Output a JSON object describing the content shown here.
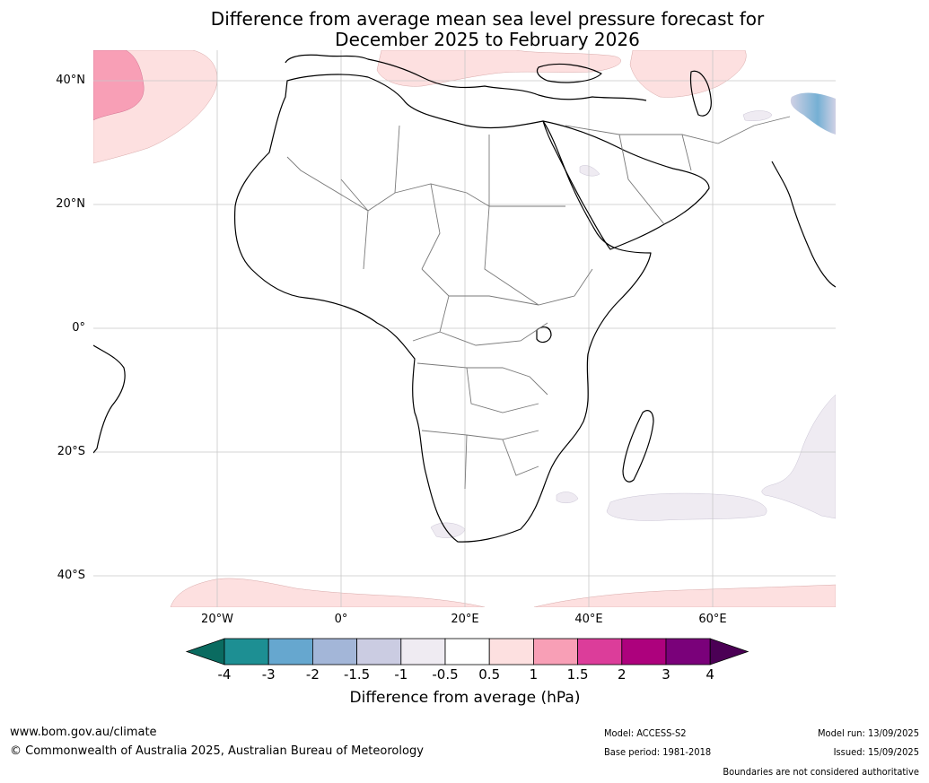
{
  "title": {
    "line1": "Difference from average mean sea level pressure forecast for",
    "line2": "December 2025 to February 2026"
  },
  "map": {
    "lat_ticks": [
      {
        "label": "40°N",
        "lat": 40
      },
      {
        "label": "20°N",
        "lat": 20
      },
      {
        "label": "0°",
        "lat": 0
      },
      {
        "label": "20°S",
        "lat": -20
      },
      {
        "label": "40°S",
        "lat": -40
      }
    ],
    "lon_ticks": [
      {
        "label": "20°W",
        "lon": -20
      },
      {
        "label": "0°",
        "lon": 0
      },
      {
        "label": "20°E",
        "lon": 20
      },
      {
        "label": "40°E",
        "lon": 40
      },
      {
        "label": "60°E",
        "lon": 60
      }
    ],
    "gridlines": true
  },
  "colorbar": {
    "labels": [
      "-4",
      "-3",
      "-2",
      "-1.5",
      "-1",
      "-0.5",
      "0.5",
      "1",
      "1.5",
      "2",
      "3",
      "4"
    ],
    "colors": [
      "#1d8f93",
      "#66a7cf",
      "#a3b6d8",
      "#cbcce2",
      "#efebf2",
      "#ffffff",
      "#fde0e0",
      "#f89fb6",
      "#dc3d9a",
      "#ad017d",
      "#7a017a"
    ],
    "under_color": "#0a6b60",
    "over_color": "#4b0055",
    "title": "Difference from average (hPa)"
  },
  "footer": {
    "website": "www.bom.gov.au/climate",
    "copyright": "© Commonwealth of Australia 2025, Australian Bureau of Meteorology",
    "model": "Model: ACCESS-S2",
    "base_period": "Base period: 1981-2018",
    "model_run": "Model run: 13/09/2025",
    "issued": "Issued: 15/09/2025",
    "disclaimer": "Boundaries are not considered authoritative"
  }
}
